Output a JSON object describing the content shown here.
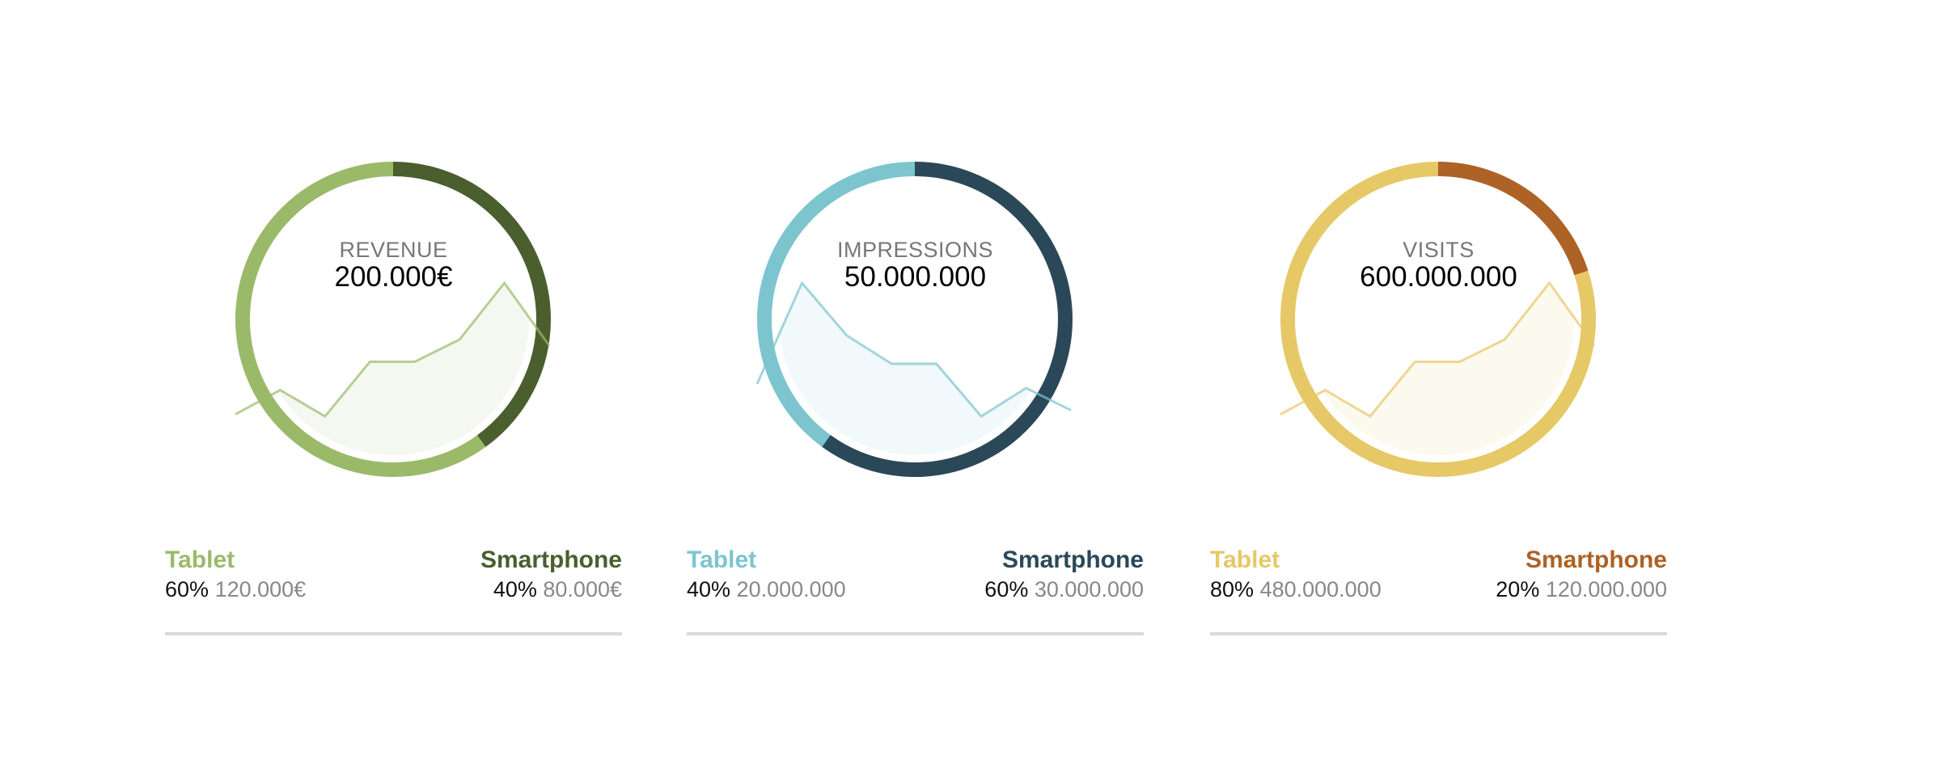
{
  "chart_data": [
    {
      "type": "donut",
      "title": "REVENUE",
      "total": "200.000€",
      "colors": {
        "tablet": "#9aba6a",
        "smartphone": "#4a5e2e"
      },
      "segments": [
        {
          "name": "Tablet",
          "percent": 60,
          "percent_label": "60%",
          "value_label": "120.000€"
        },
        {
          "name": "Smartphone",
          "percent": 40,
          "percent_label": "40%",
          "value_label": "80.000€"
        }
      ],
      "sparkline": [
        3,
        15,
        2,
        29,
        29,
        40,
        68,
        37
      ]
    },
    {
      "type": "donut",
      "title": "IMPRESSIONS",
      "total": "50.000.000",
      "colors": {
        "tablet": "#7cc5cf",
        "smartphone": "#2a4858"
      },
      "segments": [
        {
          "name": "Tablet",
          "percent": 40,
          "percent_label": "40%",
          "value_label": "20.000.000"
        },
        {
          "name": "Smartphone",
          "percent": 60,
          "percent_label": "60%",
          "value_label": "30.000.000"
        }
      ],
      "sparkline": [
        18,
        68,
        42,
        28,
        28,
        2,
        16,
        5
      ]
    },
    {
      "type": "donut",
      "title": "VISITS",
      "total": "600.000.000",
      "colors": {
        "tablet": "#e6c866",
        "smartphone": "#ad6226"
      },
      "segments": [
        {
          "name": "Tablet",
          "percent": 80,
          "percent_label": "80%",
          "value_label": "480.000.000"
        },
        {
          "name": "Smartphone",
          "percent": 20,
          "percent_label": "20%",
          "value_label": "120.000.000"
        }
      ],
      "sparkline": [
        3,
        15,
        2,
        29,
        29,
        40,
        68,
        37
      ]
    }
  ]
}
